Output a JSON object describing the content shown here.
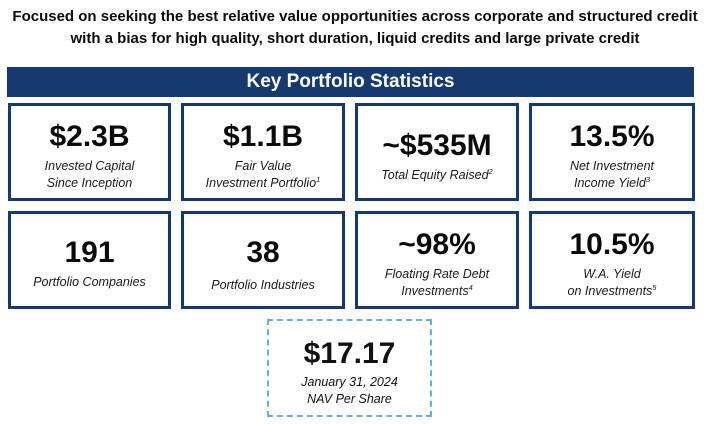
{
  "intro": {
    "line1": "Focused on seeking the best relative value opportunities across corporate and structured credit",
    "line2": "with a bias for high quality, short duration, liquid credits and large private credit"
  },
  "banner": {
    "title": "Key Portfolio Statistics",
    "color": "#173a6e"
  },
  "stats": [
    {
      "value": "$2.3B",
      "line1": "Invested Capital",
      "line2": "Since Inception",
      "note": ""
    },
    {
      "value": "$1.1B",
      "line1": "Fair Value",
      "line2": "Investment Portfolio",
      "note": "1"
    },
    {
      "value": "~$535M",
      "line1": "Total Equity Raised",
      "line2": "",
      "note": "2"
    },
    {
      "value": "13.5%",
      "line1": "Net Investment",
      "line2": "Income Yield",
      "note": "3"
    },
    {
      "value": "191",
      "line1": "Portfolio Companies",
      "line2": "",
      "note": ""
    },
    {
      "value": "38",
      "line1": "Portfolio Industries",
      "line2": "",
      "note": ""
    },
    {
      "value": "~98%",
      "line1": "Floating Rate Debt",
      "line2": "Investments",
      "note": "4"
    },
    {
      "value": "10.5%",
      "line1": "W.A. Yield",
      "line2": "on Investments",
      "note": "5"
    }
  ],
  "nav": {
    "value": "$17.17",
    "line1": "January 31, 2024",
    "line2": "NAV Per Share",
    "border_color": "#6aaede"
  }
}
